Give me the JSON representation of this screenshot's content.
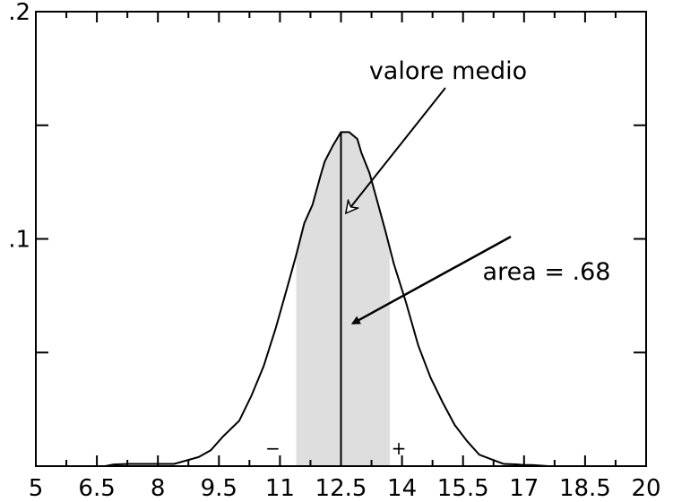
{
  "chart_data": {
    "type": "line",
    "title": "",
    "xlabel": "",
    "ylabel": "",
    "xlim": [
      5,
      20
    ],
    "ylim": [
      0,
      0.2
    ],
    "x_ticks": [
      "5",
      "6.5",
      "8",
      "9.5",
      "11",
      "12.5",
      "14",
      "15.5",
      "17",
      "18.5",
      "20"
    ],
    "y_ticks": [
      {
        "value": 0.1,
        "label": ".1"
      },
      {
        "value": 0.2,
        "label": ".2"
      }
    ],
    "grid": false,
    "series": [
      {
        "x": [
          5,
          6.7,
          6.9,
          7.3,
          7.8,
          8.4,
          9.0,
          9.3,
          9.6,
          10.0,
          10.3,
          10.6,
          10.9,
          11.2,
          11.4,
          11.6,
          11.8,
          12.0,
          12.1,
          12.3,
          12.5,
          12.7,
          12.9,
          13.0,
          13.2,
          13.4,
          13.6,
          13.8,
          14.1,
          14.4,
          14.7,
          15.0,
          15.3,
          15.6,
          15.9,
          16.2,
          16.5,
          16.8,
          17.0,
          17.2,
          17.6,
          20
        ],
        "y": [
          0,
          0,
          0.0007,
          0.001,
          0.001,
          0.001,
          0.004,
          0.007,
          0.013,
          0.02,
          0.031,
          0.044,
          0.061,
          0.08,
          0.093,
          0.107,
          0.115,
          0.128,
          0.134,
          0.141,
          0.147,
          0.147,
          0.144,
          0.138,
          0.129,
          0.116,
          0.103,
          0.089,
          0.072,
          0.053,
          0.039,
          0.028,
          0.018,
          0.011,
          0.005,
          0.003,
          0.001,
          0.0008,
          0.0005,
          0.0005,
          0,
          0
        ]
      }
    ],
    "shaded_region": {
      "x_from": 11.4,
      "x_to": 13.7,
      "area": 0.68
    },
    "mean_line_x": 12.5,
    "annotations": [
      {
        "text": "valore medio",
        "points_to": {
          "x": 12.5,
          "y": 0.11
        }
      },
      {
        "text": "area = .68",
        "points_to": {
          "x": 12.7,
          "y": 0.062
        }
      },
      {
        "text": "−",
        "at_x": 11.4
      },
      {
        "text": "+",
        "at_x": 13.7
      }
    ]
  }
}
